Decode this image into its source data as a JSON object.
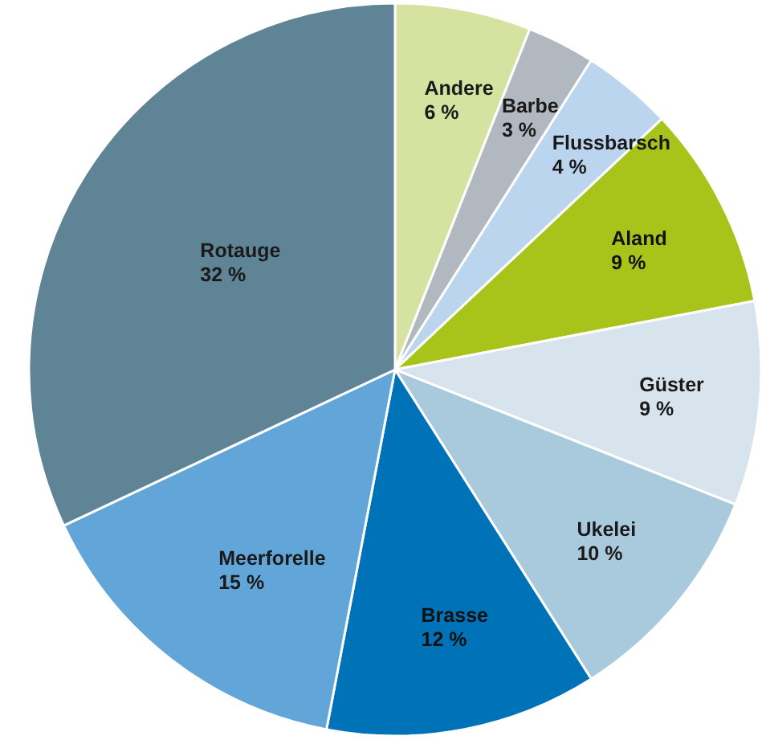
{
  "chart_data": {
    "type": "pie",
    "categories": [
      "Andere",
      "Barbe",
      "Flussbarsch",
      "Aland",
      "Güster",
      "Ukelei",
      "Brasse",
      "Meerforelle",
      "Rotauge"
    ],
    "values": [
      6,
      3,
      4,
      9,
      9,
      10,
      12,
      15,
      32
    ],
    "value_labels": [
      "6 %",
      "3 %",
      "4 %",
      "9 %",
      "9 %",
      "10 %",
      "12 %",
      "15 %",
      "32 %"
    ],
    "colors": [
      "#d6e2a0",
      "#b1b8bf",
      "#bcd5ee",
      "#a8c41a",
      "#d7e3ed",
      "#a9cadc",
      "#0072b8",
      "#62a5d8",
      "#5f8496"
    ]
  }
}
